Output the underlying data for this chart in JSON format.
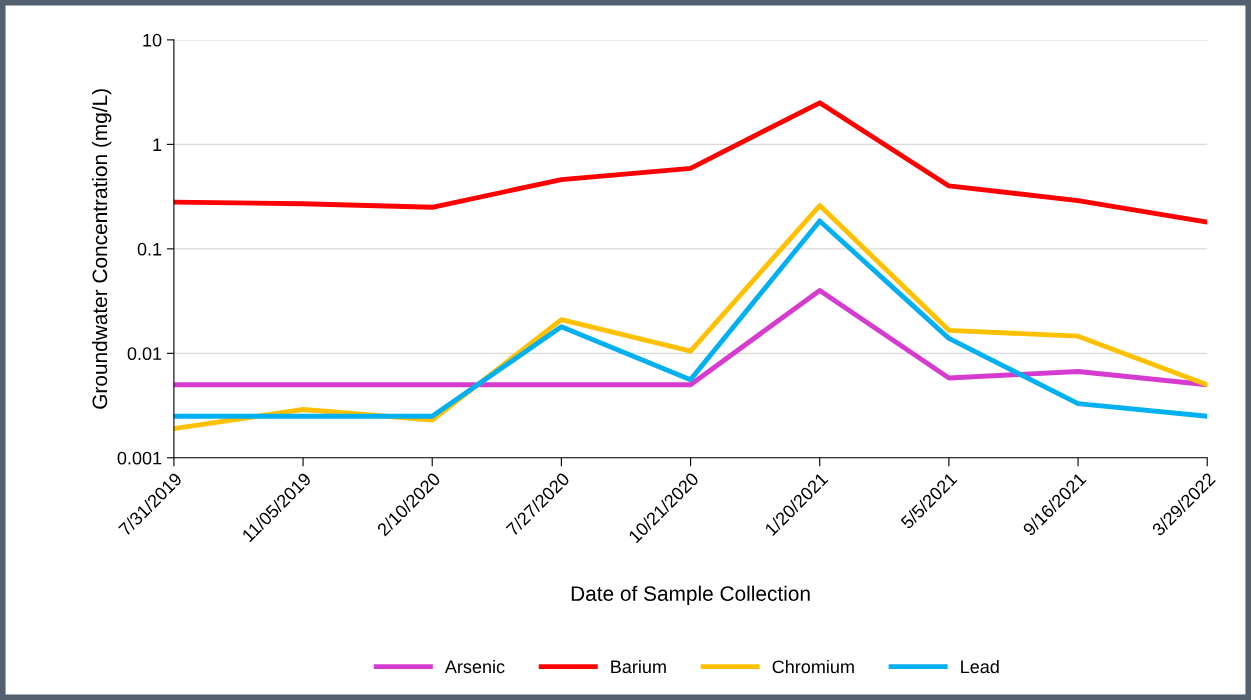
{
  "chart_data": {
    "type": "line",
    "xlabel": "Date of Sample Collection",
    "ylabel": "Groundwater Concentration (mg/L)",
    "categories": [
      "7/31/2019",
      "11/05/2019",
      "2/10/2020",
      "7/27/2020",
      "10/21/2020",
      "1/20/2021",
      "5/5/2021",
      "9/16/2021",
      "3/29/2022"
    ],
    "series": [
      {
        "name": "Arsenic",
        "color": "#d63bd0",
        "values": [
          0.005,
          0.005,
          0.005,
          0.005,
          0.005,
          0.04,
          0.0058,
          0.0067,
          0.005
        ]
      },
      {
        "name": "Barium",
        "color": "#ff0000",
        "values": [
          0.28,
          0.27,
          0.25,
          0.46,
          0.59,
          2.5,
          0.4,
          0.29,
          0.18
        ]
      },
      {
        "name": "Chromium",
        "color": "#ffc000",
        "values": [
          0.0019,
          0.0029,
          0.0023,
          0.021,
          0.0105,
          0.26,
          0.0166,
          0.0146,
          0.005
        ]
      },
      {
        "name": "Lead",
        "color": "#00b0f0",
        "values": [
          0.0025,
          0.0025,
          0.0025,
          0.018,
          0.0056,
          0.185,
          0.0139,
          0.0033,
          0.0025
        ]
      }
    ],
    "log": "y",
    "ylim": [
      0.001,
      10
    ],
    "yticks": [
      0.001,
      0.01,
      0.1,
      1,
      10
    ],
    "grid": "y",
    "legend": "bottom",
    "marker": "none",
    "line_style": "solid"
  }
}
